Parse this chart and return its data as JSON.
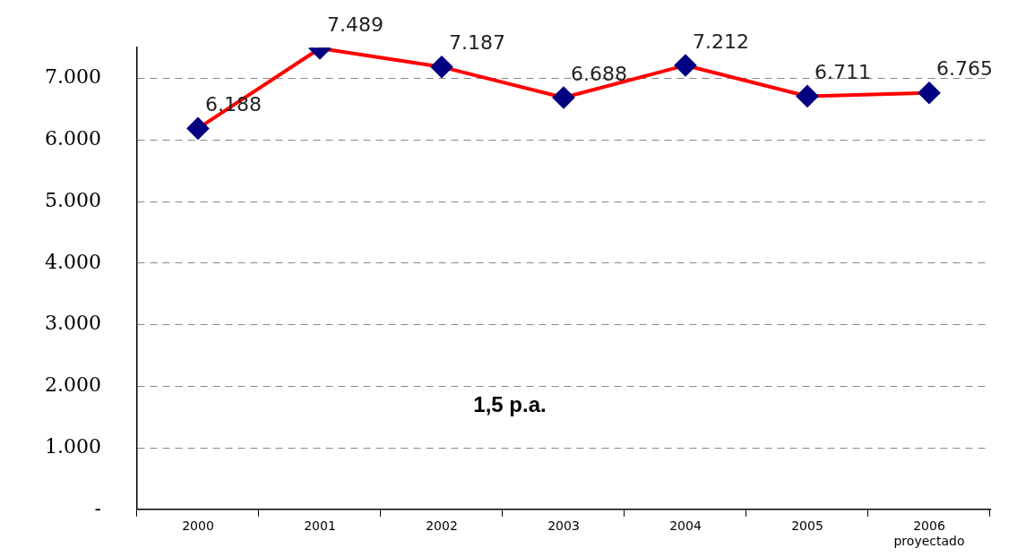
{
  "chart_data": {
    "type": "line",
    "categories": [
      "2000",
      "2001",
      "2002",
      "2003",
      "2004",
      "2005",
      "2006 proyectado"
    ],
    "series": [
      {
        "color": "#ff0000",
        "values": [
          6188,
          7489,
          7187,
          6688,
          7212,
          6711,
          6765
        ],
        "colors": [
          "#000080",
          "#000080",
          "#000080",
          "#000080",
          "#000080",
          "#000080",
          "#000080"
        ],
        "value_labels": [
          "6.188",
          "7.489",
          "7.187",
          "6.688",
          "7.212",
          "6.711",
          "6.765"
        ]
      }
    ],
    "marker": "diamond",
    "ylim": [
      0,
      7500
    ],
    "yticks": [
      {
        "value": 0,
        "label": "-"
      },
      {
        "value": 1000,
        "label": "1.000"
      },
      {
        "value": 2000,
        "label": "2.000"
      },
      {
        "value": 3000,
        "label": "3.000"
      },
      {
        "value": 4000,
        "label": "4.000"
      },
      {
        "value": 5000,
        "label": "5.000"
      },
      {
        "value": 6000,
        "label": "6.000"
      },
      {
        "value": 7000,
        "label": "7.000"
      }
    ],
    "grid": "y",
    "legend": false,
    "annotations": [
      "1,5 p.a."
    ]
  }
}
